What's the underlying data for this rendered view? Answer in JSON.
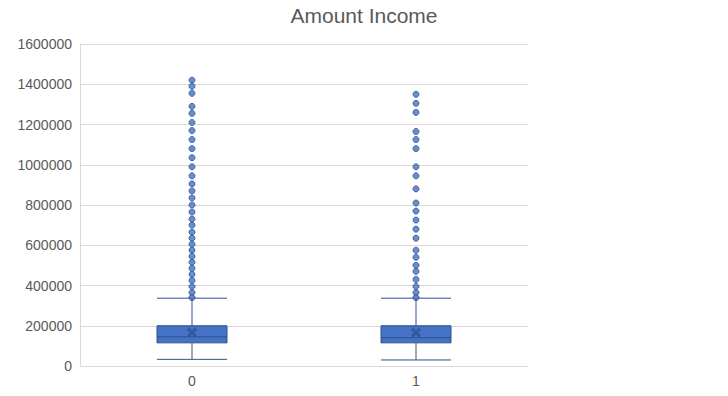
{
  "chart_data": {
    "type": "boxplot",
    "title": "Amount Income",
    "categories": [
      "0",
      "1"
    ],
    "color": "#4472c4",
    "marker": "circle",
    "boxes": [
      {
        "min": 33000,
        "q1": 115000,
        "median": 145000,
        "q3": 200000,
        "max": 337000,
        "mean": 166000,
        "outliers": [
          1420000,
          1390000,
          1355000,
          1290000,
          1255000,
          1210000,
          1170000,
          1125000,
          1080000,
          1035000,
          990000,
          945000,
          905000,
          870000,
          835000,
          800000,
          765000,
          730000,
          700000,
          665000,
          635000,
          605000,
          575000,
          545000,
          515000,
          485000,
          455000,
          425000,
          395000,
          365000,
          340000
        ]
      },
      {
        "min": 30000,
        "q1": 115000,
        "median": 140000,
        "q3": 200000,
        "max": 337000,
        "mean": 165000,
        "outliers": [
          1350000,
          1305000,
          1260000,
          1165000,
          1125000,
          1080000,
          990000,
          945000,
          880000,
          810000,
          770000,
          725000,
          680000,
          635000,
          575000,
          540000,
          500000,
          470000,
          430000,
          395000,
          365000,
          340000
        ]
      }
    ],
    "ylim": [
      0,
      1600000
    ],
    "yticks": [
      0,
      200000,
      400000,
      600000,
      800000,
      1000000,
      1200000,
      1400000,
      1600000
    ],
    "grid": true
  }
}
